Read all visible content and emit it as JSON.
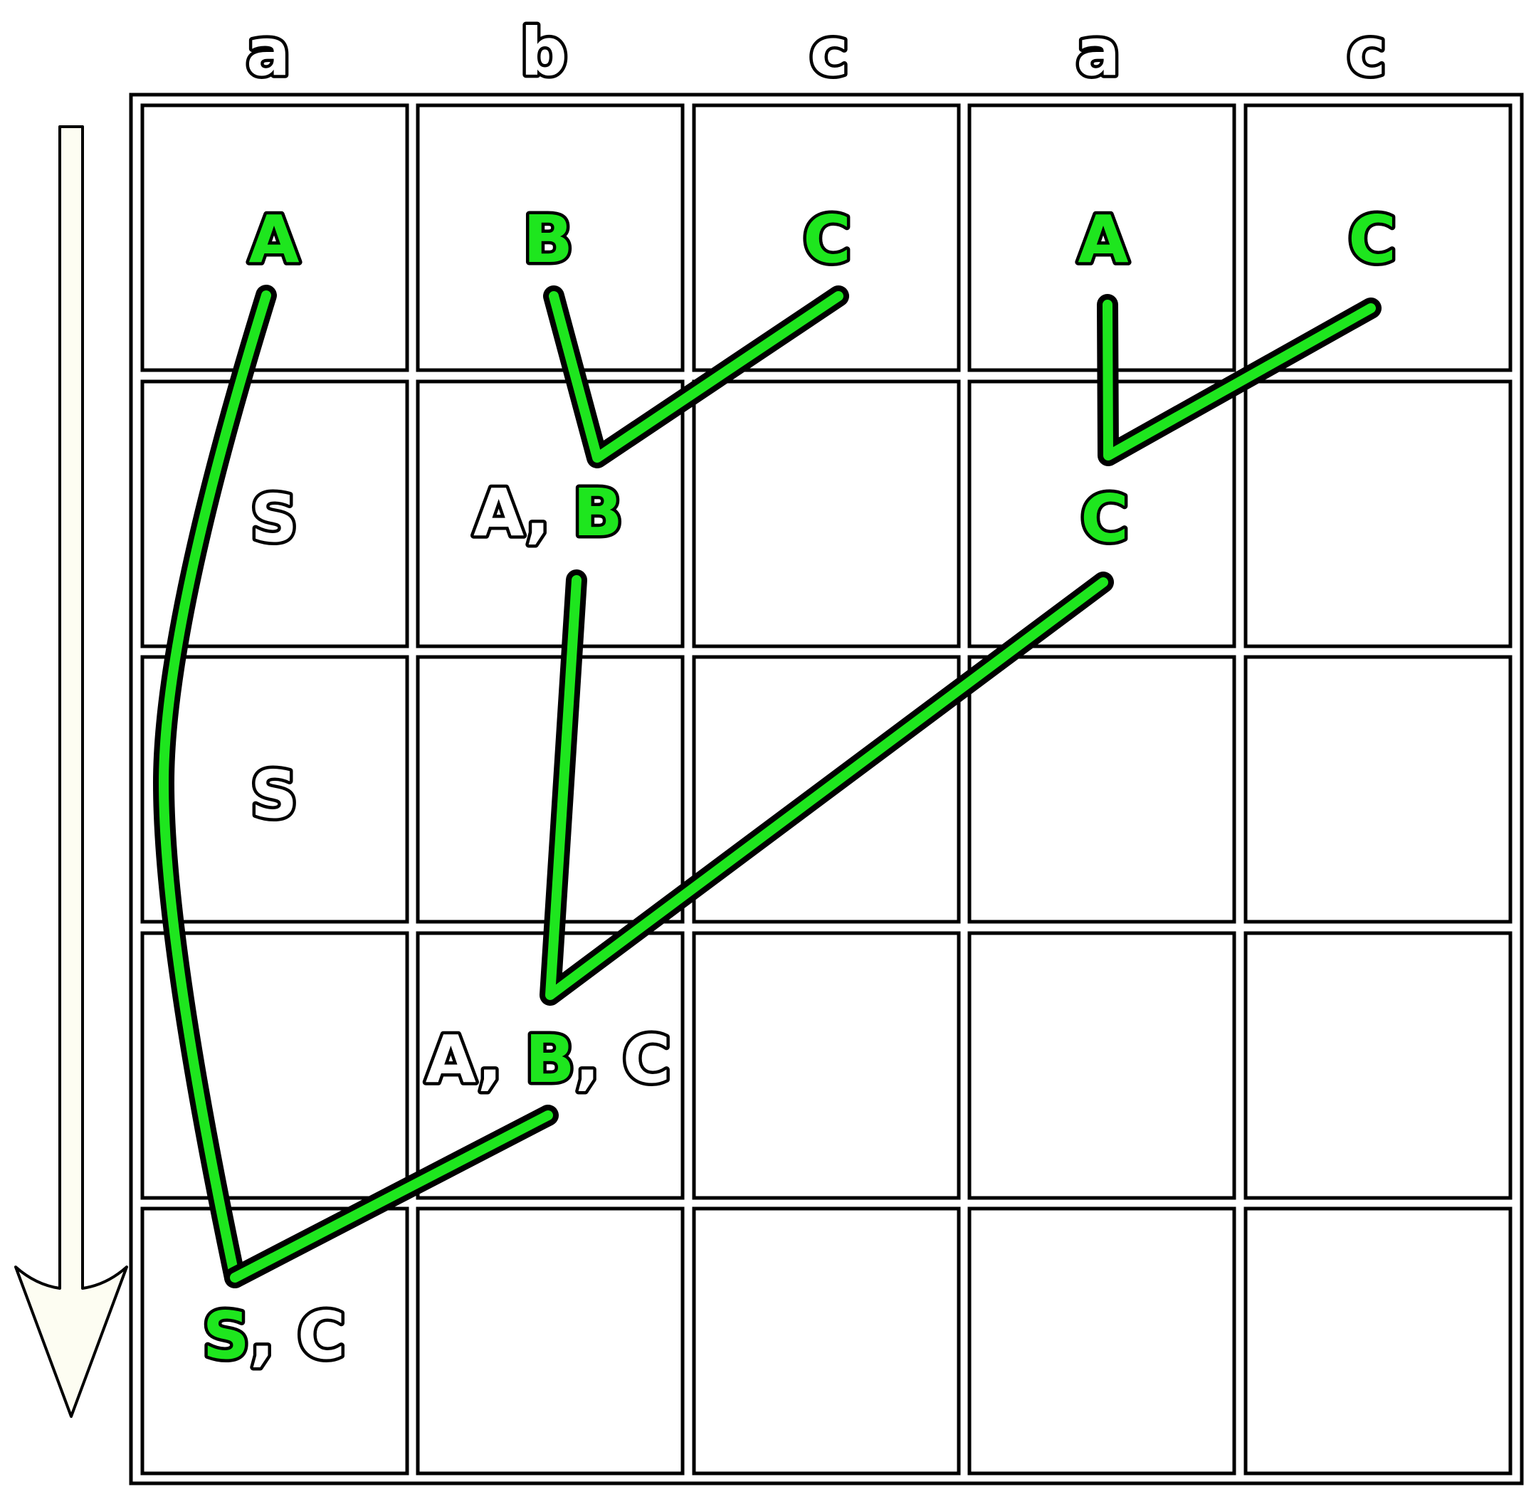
{
  "input_tokens": [
    "a",
    "b",
    "c",
    "a",
    "c"
  ],
  "row_labels": [
    [
      "A",
      "B",
      "C",
      "A",
      "C"
    ],
    [
      "S",
      "A, B",
      "",
      "C",
      ""
    ],
    [
      "S",
      "",
      "",
      "",
      ""
    ],
    [
      "",
      "A, B, C",
      "",
      "",
      ""
    ],
    [
      "S, C",
      "",
      "",
      "",
      ""
    ]
  ],
  "highlighted": [
    [
      [
        "A"
      ],
      [
        "B"
      ],
      [
        "C"
      ],
      [
        "A"
      ],
      [
        "C"
      ]
    ],
    [
      [],
      [
        "B"
      ],
      [],
      [
        "C"
      ],
      []
    ],
    [
      [],
      [],
      [],
      [],
      []
    ],
    [
      [],
      [
        "B"
      ],
      [],
      [],
      []
    ],
    [
      [
        "S"
      ],
      [],
      [],
      [],
      []
    ]
  ],
  "colors": {
    "highlight": "#1ee61e",
    "outline": "#000000",
    "arrow_fill": "#fdfdf2"
  },
  "arrow": {
    "direction": "down",
    "icon": "down-arrow-icon"
  }
}
